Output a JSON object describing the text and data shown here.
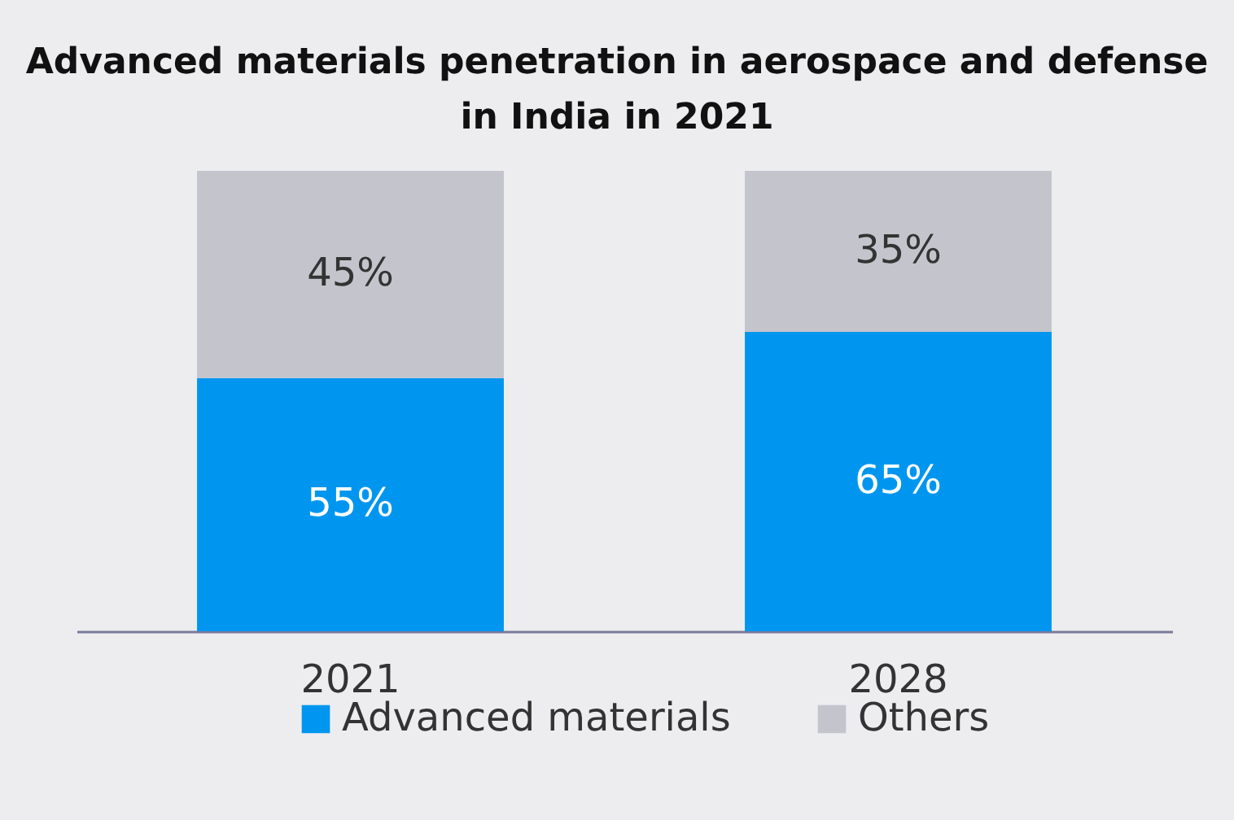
{
  "chart_data": {
    "type": "bar",
    "title": "Advanced materials penetration in aerospace and defense in India in 2021",
    "categories": [
      "2021",
      "2028"
    ],
    "stacked": true,
    "legend": "bottom",
    "series": [
      {
        "name": "Advanced materials",
        "color": "#0096ef",
        "values": [
          55,
          65
        ],
        "value_labels": [
          "55%",
          "65%"
        ]
      },
      {
        "name": "Others",
        "color": "#c4c4cd",
        "values": [
          45,
          35
        ],
        "value_labels": [
          "45%",
          "35%"
        ]
      }
    ]
  }
}
